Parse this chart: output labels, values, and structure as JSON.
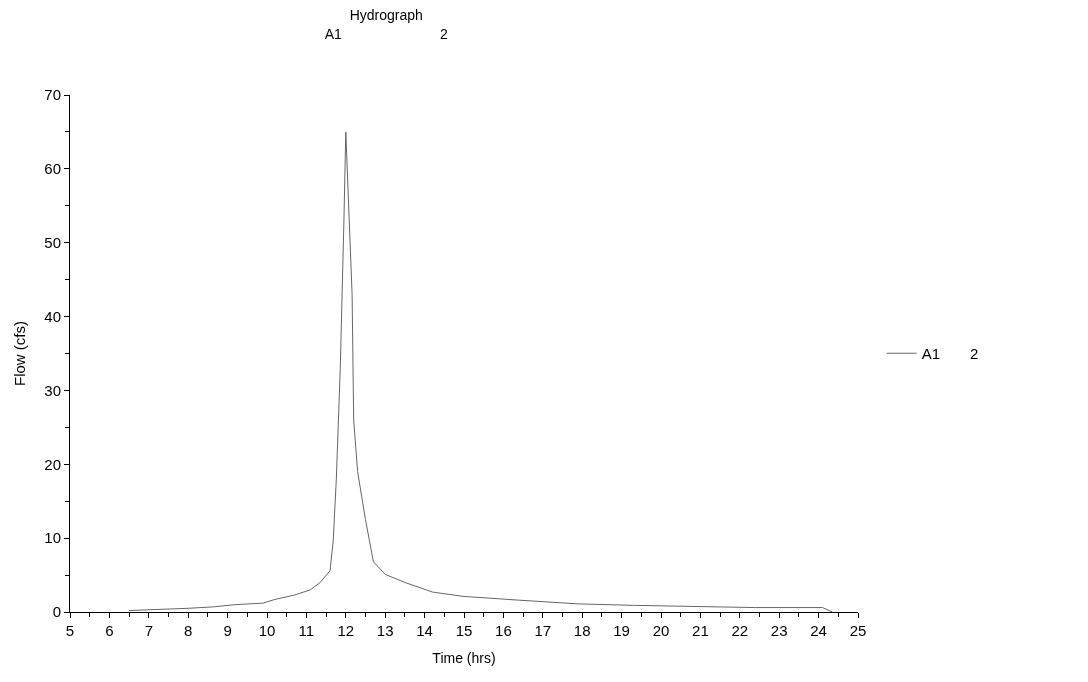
{
  "chart_data": {
    "type": "line",
    "title": "Hydrograph",
    "subtitle": "A1       2",
    "xlabel": "Time (hrs)",
    "ylabel": "Flow (cfs)",
    "xlim": [
      5,
      25
    ],
    "xticks": [
      5,
      6,
      7,
      8,
      9,
      10,
      11,
      12,
      13,
      14,
      15,
      16,
      17,
      18,
      19,
      20,
      21,
      22,
      23,
      24,
      25
    ],
    "ylim": [
      0,
      70
    ],
    "yticks": [
      0,
      10,
      20,
      30,
      40,
      50,
      60,
      70
    ],
    "legend": "right",
    "marker": "none",
    "line_style": "solid",
    "series": [
      {
        "name": "A1  2",
        "color": "#666666",
        "x": [
          6.5,
          8.0,
          8.65,
          9.2,
          9.9,
          10.2,
          10.7,
          11.1,
          11.35,
          11.6,
          11.68,
          11.76,
          11.86,
          11.95,
          12.0,
          12.16,
          12.2,
          12.3,
          12.5,
          12.7,
          13.0,
          13.5,
          14.2,
          15.0,
          15.3,
          16.4,
          17.9,
          19.3,
          22.4,
          24.1,
          24.35
        ],
        "values": [
          0.2,
          0.5,
          0.7,
          1.0,
          1.2,
          1.7,
          2.3,
          3.0,
          4.0,
          5.6,
          9.6,
          18,
          33,
          52.5,
          65,
          43,
          26,
          19,
          12.5,
          6.8,
          5.1,
          4.0,
          2.7,
          2.1,
          2.0,
          1.6,
          1.1,
          0.9,
          0.6,
          0.6,
          0
        ]
      }
    ]
  }
}
